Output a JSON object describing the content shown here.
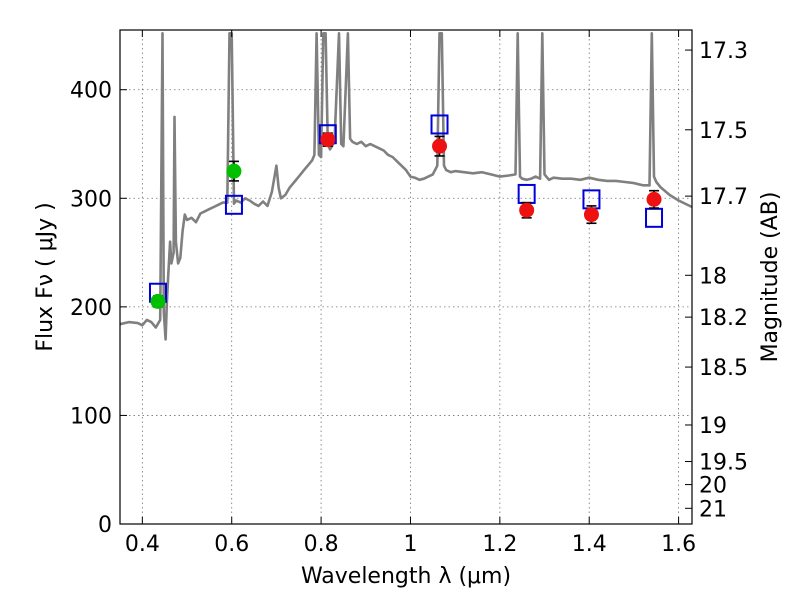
{
  "chart_data": {
    "type": "scatter",
    "xlabel": "Wavelength  λ (μm)",
    "ylabel_left": "Flux  Fν  ( μJy )",
    "ylabel_right": "Magnitude (AB)",
    "xlim": [
      0.35,
      1.63
    ],
    "ylim": [
      0,
      455
    ],
    "grid": true,
    "x_ticks": [
      {
        "value": 0.4,
        "label": "0.4"
      },
      {
        "value": 0.6,
        "label": "0.6"
      },
      {
        "value": 0.8,
        "label": "0.8"
      },
      {
        "value": 1.0,
        "label": "1"
      },
      {
        "value": 1.2,
        "label": "1.2"
      },
      {
        "value": 1.4,
        "label": "1.4"
      },
      {
        "value": 1.6,
        "label": "1.6"
      }
    ],
    "y_ticks": [
      {
        "value": 0,
        "label": "0"
      },
      {
        "value": 100,
        "label": "100"
      },
      {
        "value": 200,
        "label": "200"
      },
      {
        "value": 300,
        "label": "300"
      },
      {
        "value": 400,
        "label": "400"
      }
    ],
    "mag_ticks": [
      {
        "value": 17.3,
        "label": "17.3"
      },
      {
        "value": 17.5,
        "label": "17.5"
      },
      {
        "value": 17.7,
        "label": "17.7"
      },
      {
        "value": 18.0,
        "label": "18"
      },
      {
        "value": 18.2,
        "label": "18.2"
      },
      {
        "value": 18.5,
        "label": "18.5"
      },
      {
        "value": 19.0,
        "label": "19"
      },
      {
        "value": 19.5,
        "label": "19.5"
      },
      {
        "value": 20.0,
        "label": "20"
      },
      {
        "value": 21.0,
        "label": "21"
      }
    ],
    "colors": {
      "spectrum": "#808080",
      "optical_points": "#00c000",
      "nir_points": "#ee1111",
      "model_boxes": "#0000dd",
      "errorbar": "#000000"
    },
    "series": [
      {
        "type": "line",
        "points": [
          [
            0.35,
            184
          ],
          [
            0.37,
            186
          ],
          [
            0.39,
            185
          ],
          [
            0.4,
            183
          ],
          [
            0.41,
            188
          ],
          [
            0.42,
            186
          ],
          [
            0.43,
            181
          ],
          [
            0.44,
            188
          ],
          [
            0.445,
            452
          ],
          [
            0.448,
            195
          ],
          [
            0.452,
            170
          ],
          [
            0.455,
            205
          ],
          [
            0.458,
            230
          ],
          [
            0.462,
            260
          ],
          [
            0.465,
            240
          ],
          [
            0.47,
            250
          ],
          [
            0.472,
            375
          ],
          [
            0.475,
            260
          ],
          [
            0.48,
            240
          ],
          [
            0.485,
            245
          ],
          [
            0.49,
            270
          ],
          [
            0.495,
            285
          ],
          [
            0.5,
            280
          ],
          [
            0.51,
            282
          ],
          [
            0.52,
            278
          ],
          [
            0.53,
            286
          ],
          [
            0.54,
            288
          ],
          [
            0.55,
            290
          ],
          [
            0.56,
            292
          ],
          [
            0.57,
            294
          ],
          [
            0.58,
            296
          ],
          [
            0.59,
            296
          ],
          [
            0.595,
            452
          ],
          [
            0.6,
            452
          ],
          [
            0.605,
            295
          ],
          [
            0.61,
            298
          ],
          [
            0.62,
            296
          ],
          [
            0.63,
            300
          ],
          [
            0.64,
            298
          ],
          [
            0.65,
            295
          ],
          [
            0.66,
            293
          ],
          [
            0.67,
            297
          ],
          [
            0.68,
            293
          ],
          [
            0.69,
            306
          ],
          [
            0.7,
            330
          ],
          [
            0.705,
            310
          ],
          [
            0.71,
            300
          ],
          [
            0.72,
            303
          ],
          [
            0.73,
            310
          ],
          [
            0.74,
            315
          ],
          [
            0.75,
            320
          ],
          [
            0.76,
            325
          ],
          [
            0.77,
            330
          ],
          [
            0.78,
            335
          ],
          [
            0.785,
            340
          ],
          [
            0.79,
            452
          ],
          [
            0.795,
            340
          ],
          [
            0.8,
            338
          ],
          [
            0.805,
            452
          ],
          [
            0.81,
            452
          ],
          [
            0.815,
            350
          ],
          [
            0.82,
            345
          ],
          [
            0.83,
            352
          ],
          [
            0.84,
            452
          ],
          [
            0.845,
            350
          ],
          [
            0.85,
            348
          ],
          [
            0.86,
            452
          ],
          [
            0.865,
            355
          ],
          [
            0.87,
            352
          ],
          [
            0.88,
            350
          ],
          [
            0.89,
            352
          ],
          [
            0.9,
            348
          ],
          [
            0.91,
            350
          ],
          [
            0.92,
            348
          ],
          [
            0.93,
            346
          ],
          [
            0.94,
            344
          ],
          [
            0.95,
            340
          ],
          [
            0.96,
            338
          ],
          [
            0.97,
            334
          ],
          [
            0.98,
            330
          ],
          [
            0.99,
            326
          ],
          [
            1.0,
            320
          ],
          [
            1.01,
            319
          ],
          [
            1.02,
            317
          ],
          [
            1.03,
            318
          ],
          [
            1.04,
            320
          ],
          [
            1.05,
            322
          ],
          [
            1.06,
            330
          ],
          [
            1.065,
            452
          ],
          [
            1.07,
            452
          ],
          [
            1.075,
            330
          ],
          [
            1.08,
            326
          ],
          [
            1.09,
            324
          ],
          [
            1.1,
            325
          ],
          [
            1.12,
            324
          ],
          [
            1.14,
            323
          ],
          [
            1.16,
            324
          ],
          [
            1.18,
            322
          ],
          [
            1.2,
            320
          ],
          [
            1.22,
            321
          ],
          [
            1.235,
            322
          ],
          [
            1.24,
            452
          ],
          [
            1.245,
            320
          ],
          [
            1.25,
            318
          ],
          [
            1.26,
            317
          ],
          [
            1.27,
            318
          ],
          [
            1.28,
            320
          ],
          [
            1.29,
            318
          ],
          [
            1.295,
            452
          ],
          [
            1.3,
            322
          ],
          [
            1.31,
            317
          ],
          [
            1.32,
            319
          ],
          [
            1.34,
            318
          ],
          [
            1.36,
            318
          ],
          [
            1.38,
            317
          ],
          [
            1.4,
            319
          ],
          [
            1.42,
            317
          ],
          [
            1.44,
            316
          ],
          [
            1.46,
            316
          ],
          [
            1.48,
            315
          ],
          [
            1.5,
            314
          ],
          [
            1.52,
            312
          ],
          [
            1.535,
            312
          ],
          [
            1.54,
            452
          ],
          [
            1.545,
            320
          ],
          [
            1.55,
            315
          ],
          [
            1.56,
            310
          ],
          [
            1.58,
            303
          ],
          [
            1.6,
            298
          ],
          [
            1.63,
            292
          ]
        ]
      },
      {
        "type": "scatter",
        "points": [
          {
            "x": 0.435,
            "y": 205,
            "err": 5
          },
          {
            "x": 0.605,
            "y": 325,
            "err": 9
          }
        ]
      },
      {
        "type": "scatter",
        "points": [
          {
            "x": 0.815,
            "y": 354,
            "err": 6
          },
          {
            "x": 1.065,
            "y": 348,
            "err": 9
          },
          {
            "x": 1.26,
            "y": 289,
            "err": 7
          },
          {
            "x": 1.405,
            "y": 285,
            "err": 8
          },
          {
            "x": 1.545,
            "y": 299,
            "err": 8
          }
        ]
      },
      {
        "type": "scatter",
        "points": [
          {
            "x": 0.435,
            "y": 213
          },
          {
            "x": 0.605,
            "y": 294
          },
          {
            "x": 0.815,
            "y": 359
          },
          {
            "x": 1.065,
            "y": 368
          },
          {
            "x": 1.26,
            "y": 304
          },
          {
            "x": 1.405,
            "y": 299
          },
          {
            "x": 1.545,
            "y": 282
          }
        ]
      }
    ]
  }
}
